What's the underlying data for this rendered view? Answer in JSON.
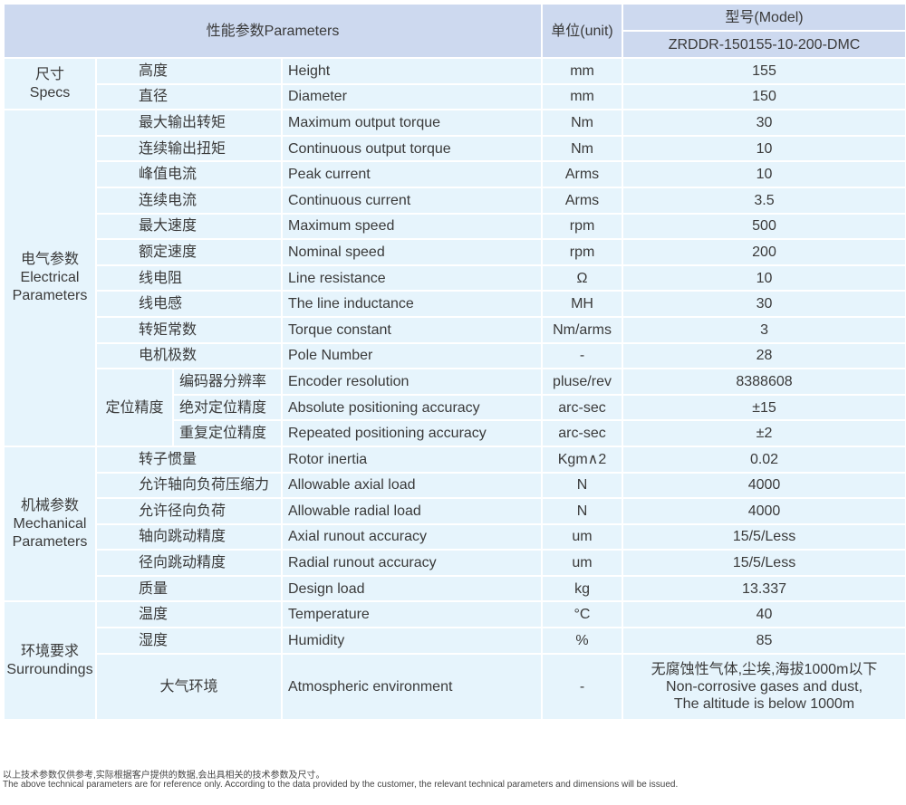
{
  "header": {
    "parameters": "性能参数Parameters",
    "unit": "单位(unit)",
    "model_label": "型号(Model)",
    "model": "ZRDDR-150155-10-200-DMC"
  },
  "groups": [
    {
      "cn": "尺寸",
      "en": "Specs",
      "rows": [
        {
          "cn": "高度",
          "en": "Height",
          "unit": "mm",
          "value": "155"
        },
        {
          "cn": "直径",
          "en": "Diameter",
          "unit": "mm",
          "value": "150"
        }
      ]
    },
    {
      "cn": "电气参数",
      "en": "Electrical Parameters",
      "rows": [
        {
          "cn": "最大输出转矩",
          "en": "Maximum output torque",
          "unit": "Nm",
          "value": "30"
        },
        {
          "cn": "连续输出扭矩",
          "en": "Continuous output torque",
          "unit": "Nm",
          "value": "10"
        },
        {
          "cn": "峰值电流",
          "en": "Peak current",
          "unit": "Arms",
          "value": "10"
        },
        {
          "cn": "连续电流",
          "en": "Continuous current",
          "unit": "Arms",
          "value": "3.5"
        },
        {
          "cn": "最大速度",
          "en": "Maximum speed",
          "unit": "rpm",
          "value": "500"
        },
        {
          "cn": "额定速度",
          "en": "Nominal speed",
          "unit": "rpm",
          "value": "200"
        },
        {
          "cn": "线电阻",
          "en": "Line resistance",
          "unit": "Ω",
          "value": "10"
        },
        {
          "cn": "线电感",
          "en": "The line inductance",
          "unit": "MH",
          "value": "30"
        },
        {
          "cn": "转矩常数",
          "en": "Torque constant",
          "unit": "Nm/arms",
          "value": "3"
        },
        {
          "cn": "电机极数",
          "en": "Pole Number",
          "unit": "-",
          "value": "28"
        },
        {
          "sub": "定位精度",
          "cn": "编码器分辨率",
          "en": "Encoder resolution",
          "unit": "pluse/rev",
          "value": "8388608"
        },
        {
          "sub": "定位精度",
          "cn": "绝对定位精度",
          "en": "Absolute positioning accuracy",
          "unit": "arc-sec",
          "value": "±15"
        },
        {
          "sub": "定位精度",
          "cn": "重复定位精度",
          "en": "Repeated positioning accuracy",
          "unit": "arc-sec",
          "value": "±2"
        }
      ]
    },
    {
      "cn": "机械参数",
      "en": "Mechanical Parameters",
      "rows": [
        {
          "cn": "转子惯量",
          "en": "Rotor inertia",
          "unit": "Kgm∧2",
          "value": "0.02"
        },
        {
          "cn": "允许轴向负荷压缩力",
          "en": "Allowable axial load",
          "unit": "N",
          "value": "4000"
        },
        {
          "cn": "允许径向负荷",
          "en": "Allowable radial load",
          "unit": "N",
          "value": "4000"
        },
        {
          "cn": "轴向跳动精度",
          "en": "Axial runout accuracy",
          "unit": "um",
          "value": "15/5/Less"
        },
        {
          "cn": "径向跳动精度",
          "en": "Radial runout accuracy",
          "unit": "um",
          "value": "15/5/Less"
        },
        {
          "cn": "质量",
          "en": "Design load",
          "unit": "kg",
          "value": "13.337"
        }
      ]
    },
    {
      "cn": "环境要求",
      "en": "Surroundings",
      "rows": [
        {
          "cn": "温度",
          "en": "Temperature",
          "unit": "°C",
          "value": "40"
        },
        {
          "cn": "湿度",
          "en": "Humidity",
          "unit": "%",
          "value": "85"
        },
        {
          "cn": "大气环境",
          "en": "Atmospheric environment",
          "unit": "-",
          "value": "无腐蚀性气体,尘埃,海拔1000m以下\nNon-corrosive gases and dust,\nThe altitude is below 1000m",
          "tall": true
        }
      ]
    }
  ],
  "footnote": {
    "cn": "以上技术参数仅供参考,实际根据客户提供的数据,会出具相关的技术参数及尺寸。",
    "en": "The above technical parameters are for reference only. According to the data provided by the customer, the relevant technical parameters and dimensions will be issued."
  }
}
